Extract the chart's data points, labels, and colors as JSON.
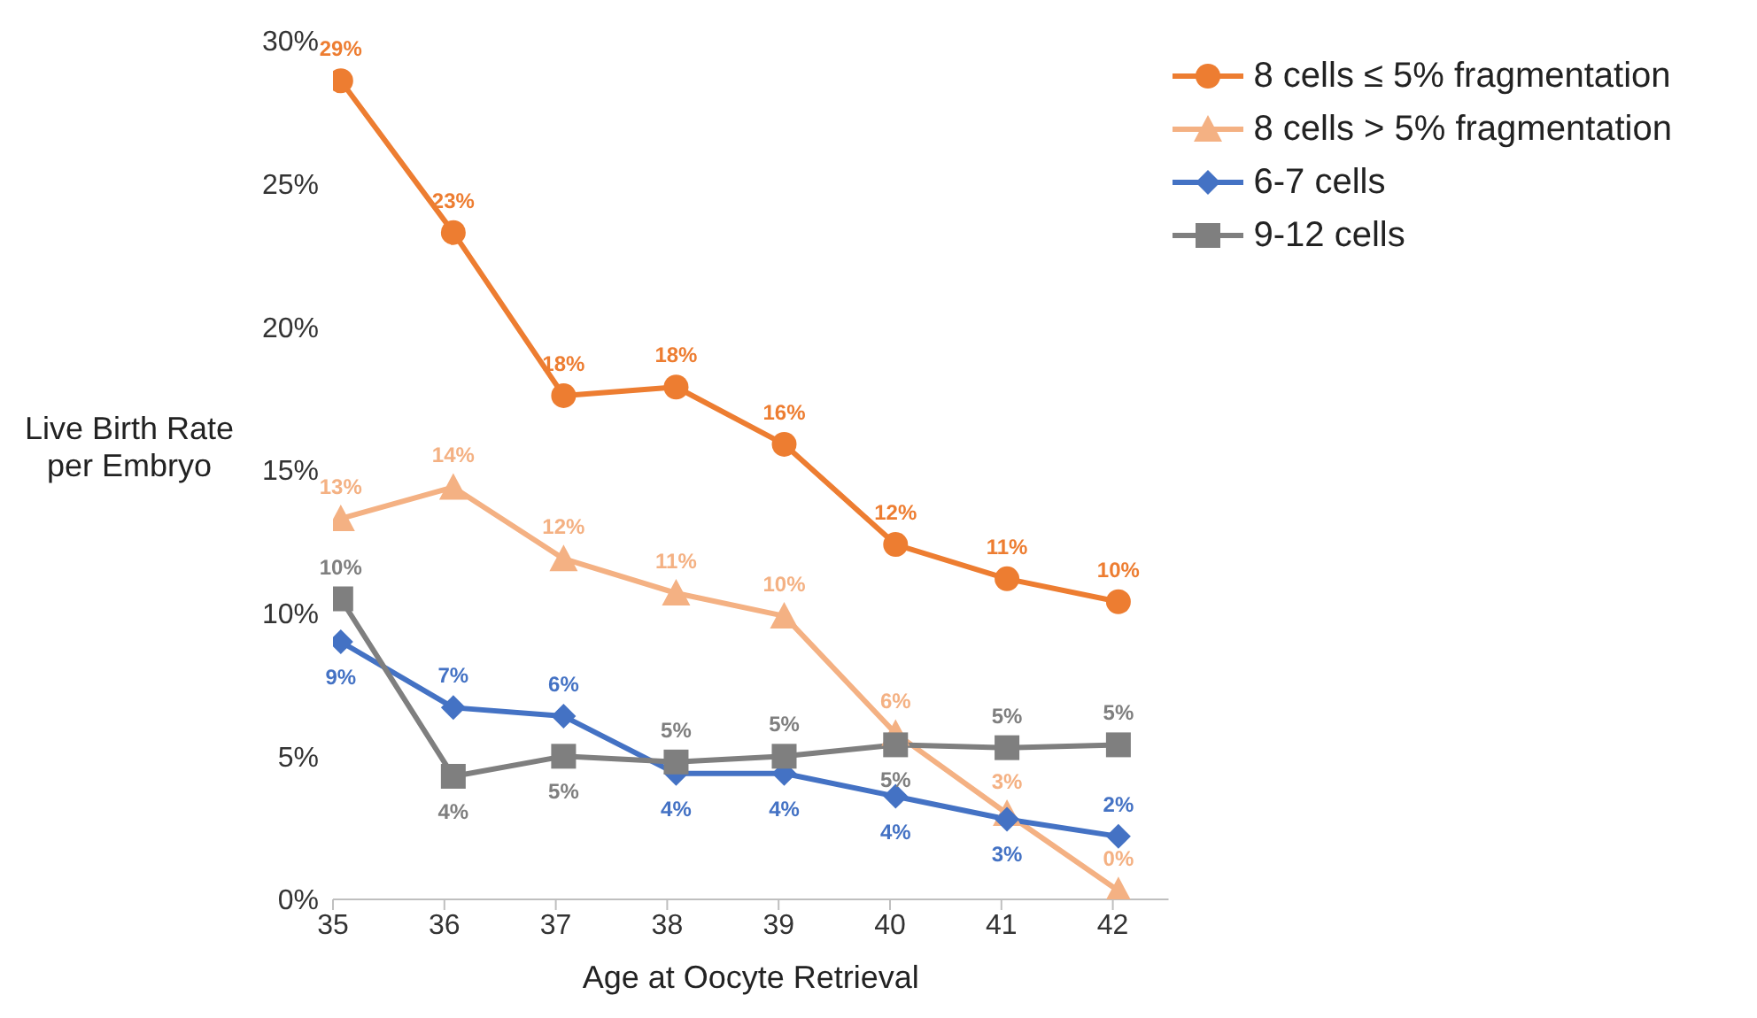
{
  "chart_data": {
    "type": "line",
    "xlabel": "Age at Oocyte Retrieval",
    "ylabel": "Live Birth Rate per Embryo",
    "x": [
      35.07,
      36.08,
      37.07,
      38.08,
      39.05,
      40.05,
      41.05,
      42.05
    ],
    "xlim": [
      35,
      42.5
    ],
    "xticks": [
      35,
      36,
      37,
      38,
      39,
      40,
      41,
      42
    ],
    "ylim": [
      0,
      30
    ],
    "yticks": [
      {
        "value": 0,
        "label": "0%"
      },
      {
        "value": 5,
        "label": "5%"
      },
      {
        "value": 10,
        "label": "10%"
      },
      {
        "value": 15,
        "label": "15%"
      },
      {
        "value": 20,
        "label": "20%"
      },
      {
        "value": 25,
        "label": "25%"
      },
      {
        "value": 30,
        "label": "30%"
      }
    ],
    "grid": false,
    "legend": "top right",
    "line_style": "solid",
    "series": [
      {
        "name": "8 cells ≤ 5% fragmentation",
        "color": "#ed7d31",
        "marker": "circle",
        "values": [
          28.6,
          23.3,
          17.6,
          17.9,
          15.9,
          12.4,
          11.2,
          10.4
        ],
        "value_labels": [
          "29%",
          "23%",
          "18%",
          "18%",
          "16%",
          "12%",
          "11%",
          "10%"
        ]
      },
      {
        "name": "8 cells > 5% fragmentation",
        "color": "#f4b183",
        "marker": "triangle",
        "values": [
          13.3,
          14.4,
          11.9,
          10.7,
          9.9,
          5.8,
          3.0,
          0.3
        ],
        "value_labels": [
          "13%",
          "14%",
          "12%",
          "11%",
          "10%",
          "6%",
          "3%",
          "0%"
        ]
      },
      {
        "name": "6-7 cells",
        "color": "#4472c4",
        "marker": "diamond",
        "values": [
          9.0,
          6.7,
          6.4,
          4.4,
          4.4,
          3.6,
          2.8,
          2.2
        ],
        "value_labels": [
          "9%",
          "7%",
          "6%",
          "4%",
          "4%",
          "4%",
          "3%",
          "2%"
        ]
      },
      {
        "name": "9-12 cells",
        "color": "#7f7f7f",
        "marker": "square",
        "values": [
          10.5,
          4.3,
          5.0,
          4.8,
          5.0,
          5.4,
          5.3,
          5.4
        ],
        "value_labels": [
          "10%",
          "4%",
          "5%",
          "5%",
          "5%",
          "5%",
          "5%",
          "5%"
        ]
      }
    ]
  }
}
